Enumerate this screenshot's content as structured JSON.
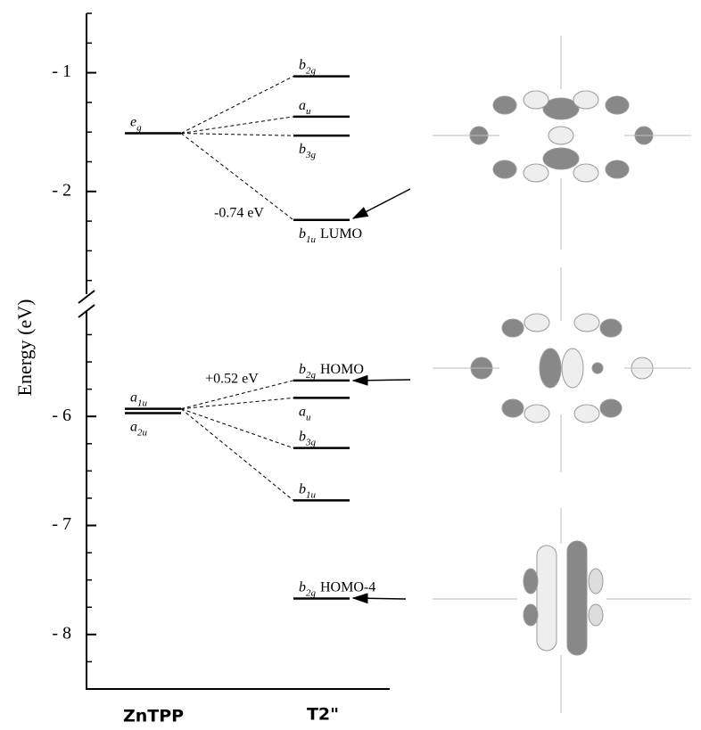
{
  "chart_data": {
    "type": "energy-levels",
    "ylabel": "Energy (eV)",
    "columns": [
      "ZnTPP",
      "T2\""
    ],
    "segments": [
      {
        "ylim": [
          -2.85,
          -0.5
        ],
        "yticks": [
          {
            "value": -1,
            "label": "- 1"
          },
          {
            "value": -2,
            "label": "- 2"
          }
        ],
        "minor_yticks": [
          -0.5,
          -0.75,
          -1.25,
          -1.5,
          -1.75,
          -2.25,
          -2.5,
          -2.75
        ]
      },
      {
        "ylim": [
          -8.5,
          -5.05
        ],
        "yticks": [
          {
            "value": -6,
            "label": "- 6"
          },
          {
            "value": -7,
            "label": "- 7"
          },
          {
            "value": -8,
            "label": "- 8"
          }
        ],
        "minor_yticks": [
          -5.25,
          -5.5,
          -5.75,
          -6.25,
          -6.5,
          -6.75,
          -7.25,
          -7.5,
          -7.75,
          -8.25,
          -8.5
        ]
      }
    ],
    "series": [
      {
        "name": "ZnTPP",
        "levels": [
          {
            "symbol": "e",
            "sub": "g",
            "value": -1.51
          },
          {
            "symbol": "a",
            "sub": "1u",
            "value": -5.93
          },
          {
            "symbol": "a",
            "sub": "2u",
            "value": -5.97
          }
        ]
      },
      {
        "name": "T2\"",
        "levels": [
          {
            "symbol": "b",
            "sub": "2g",
            "value": -1.03
          },
          {
            "symbol": "a",
            "sub": "u",
            "value": -1.37
          },
          {
            "symbol": "b",
            "sub": "3g",
            "value": -1.53
          },
          {
            "symbol": "b",
            "sub": "1u",
            "tag": "LUMO",
            "value": -2.24
          },
          {
            "symbol": "b",
            "sub": "2g",
            "tag": "HOMO",
            "value": -5.67
          },
          {
            "symbol": "a",
            "sub": "u",
            "value": -5.83
          },
          {
            "symbol": "b",
            "sub": "3g",
            "value": -6.29
          },
          {
            "symbol": "b",
            "sub": "1u",
            "value": -6.77
          },
          {
            "symbol": "b",
            "sub": "2g",
            "tag": "HOMO-4",
            "value": -7.67
          }
        ]
      }
    ],
    "annotations": [
      "-0.74 eV",
      "+0.52 eV"
    ]
  }
}
